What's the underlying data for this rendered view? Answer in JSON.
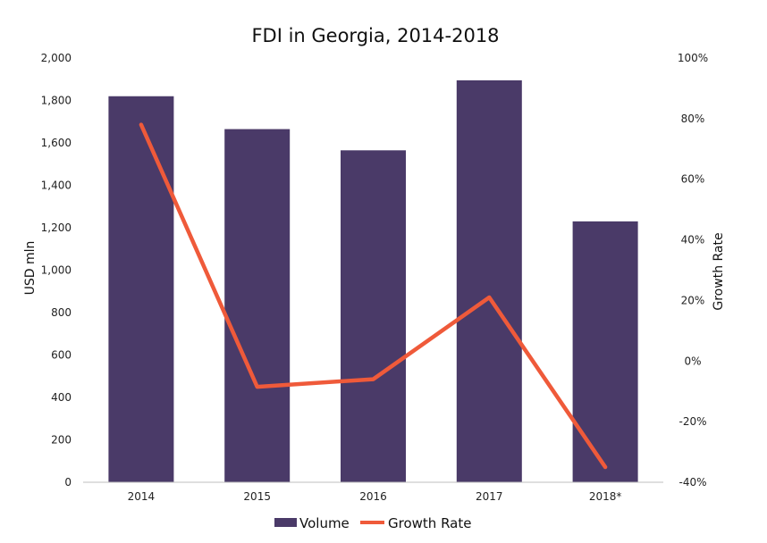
{
  "colors": {
    "bar": "#4a3a68",
    "line": "#ef5a3a",
    "axis": "#bfbfbf"
  },
  "chart_data": {
    "type": "bar",
    "title": "FDI in Georgia, 2014-2018",
    "categories": [
      "2014",
      "2015",
      "2016",
      "2017",
      "2018*"
    ],
    "ylabel": "USD mln",
    "y2label": "Growth Rate",
    "ylim": [
      0,
      2000
    ],
    "y2lim": [
      -40,
      100
    ],
    "yticks": [
      "0",
      "200",
      "400",
      "600",
      "800",
      "1,000",
      "1,200",
      "1,400",
      "1,600",
      "1,800",
      "2,000"
    ],
    "y2ticks": [
      "-40%",
      "-20%",
      "0%",
      "20%",
      "40%",
      "60%",
      "80%",
      "100%"
    ],
    "series": [
      {
        "name": "Volume",
        "type": "bar",
        "axis": "left",
        "values": [
          1820,
          1665,
          1565,
          1895,
          1230
        ]
      },
      {
        "name": "Growth Rate",
        "type": "line",
        "axis": "right",
        "values": [
          78,
          -8.5,
          -6,
          21,
          -35
        ]
      }
    ],
    "grid": false,
    "legend": "bottom"
  }
}
